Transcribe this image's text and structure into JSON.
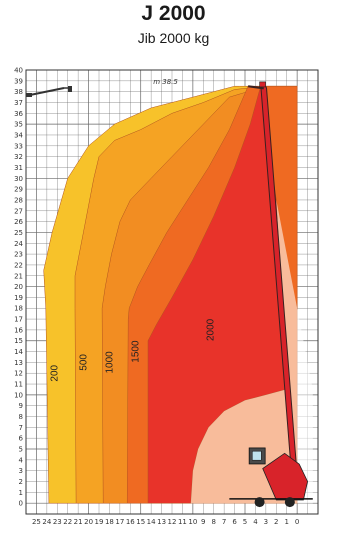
{
  "header": {
    "title": "J 2000",
    "subtitle": "Jib 2000 kg"
  },
  "chart_data": {
    "type": "area",
    "title": "J 2000",
    "subtitle": "Jib 2000 kg",
    "xlabel": "",
    "ylabel": "",
    "xlim": [
      26,
      -2
    ],
    "ylim": [
      -1,
      40
    ],
    "grid": true,
    "x_ticks": [
      25,
      20,
      15,
      10,
      5,
      0
    ],
    "y_ticks": [
      0,
      5,
      10,
      15,
      20,
      25,
      30,
      35,
      40
    ],
    "max_height_annotation": "m 38.5",
    "colors": {
      "200": "#f7c22a",
      "500": "#f5a323",
      "1000": "#f28d22",
      "1500": "#ef6a22",
      "2000": "#e8332a",
      "boom": "#d8232a",
      "grid": "#666666"
    },
    "series": [
      {
        "name": "200",
        "label_at": [
          23,
          12
        ],
        "outline": [
          [
            23.8,
            0
          ],
          [
            24.1,
            18
          ],
          [
            24.3,
            21.5
          ],
          [
            23.5,
            25
          ],
          [
            22,
            30
          ],
          [
            20,
            33
          ],
          [
            17.5,
            35
          ],
          [
            14,
            36.5
          ],
          [
            10,
            37.5
          ],
          [
            6,
            38.5
          ],
          [
            5.5,
            38.5
          ],
          [
            3,
            38.5
          ]
        ]
      },
      {
        "name": "500",
        "label_at": [
          20.2,
          13
        ],
        "outline": [
          [
            21.2,
            0
          ],
          [
            21.3,
            18
          ],
          [
            21.3,
            21
          ],
          [
            20.5,
            25
          ],
          [
            19.5,
            30
          ],
          [
            19,
            32
          ],
          [
            17.5,
            33.5
          ],
          [
            15,
            34.5
          ],
          [
            12,
            36
          ],
          [
            9,
            37
          ],
          [
            6,
            38.2
          ],
          [
            3,
            38.5
          ]
        ]
      },
      {
        "name": "1000",
        "label_at": [
          17.7,
          13
        ],
        "outline": [
          [
            18.6,
            0
          ],
          [
            18.7,
            18
          ],
          [
            18.4,
            20
          ],
          [
            17.8,
            23
          ],
          [
            17,
            26
          ],
          [
            16,
            28
          ],
          [
            14,
            30
          ],
          [
            12,
            32
          ],
          [
            9.5,
            34.5
          ],
          [
            6.5,
            37.5
          ],
          [
            3,
            38.5
          ]
        ]
      },
      {
        "name": "1500",
        "label_at": [
          15.2,
          14
        ],
        "outline": [
          [
            16.3,
            0
          ],
          [
            16.2,
            17
          ],
          [
            16.1,
            18
          ],
          [
            15.3,
            20
          ],
          [
            14.2,
            22
          ],
          [
            12.5,
            25
          ],
          [
            10.5,
            28
          ],
          [
            8.5,
            31
          ],
          [
            6.5,
            34.5
          ],
          [
            4.7,
            38.5
          ],
          [
            3,
            38.5
          ]
        ]
      },
      {
        "name": "2000",
        "label_at": [
          8,
          16
        ],
        "outline": [
          [
            14.3,
            0
          ],
          [
            14.3,
            15
          ],
          [
            13.5,
            16.5
          ],
          [
            12,
            19
          ],
          [
            10,
            22.5
          ],
          [
            8,
            26.5
          ],
          [
            6,
            31
          ],
          [
            4.5,
            35
          ],
          [
            3.5,
            38.5
          ],
          [
            3,
            38.5
          ]
        ],
        "inner_boundary": [
          [
            3.5,
            38.5
          ],
          [
            2,
            28
          ],
          [
            1.5,
            20
          ],
          [
            1.1,
            10.5
          ],
          [
            3,
            10
          ],
          [
            5,
            9.5
          ],
          [
            7,
            8.5
          ],
          [
            8.5,
            7
          ],
          [
            9.5,
            5
          ],
          [
            10,
            3
          ],
          [
            10.2,
            0
          ]
        ]
      }
    ]
  }
}
